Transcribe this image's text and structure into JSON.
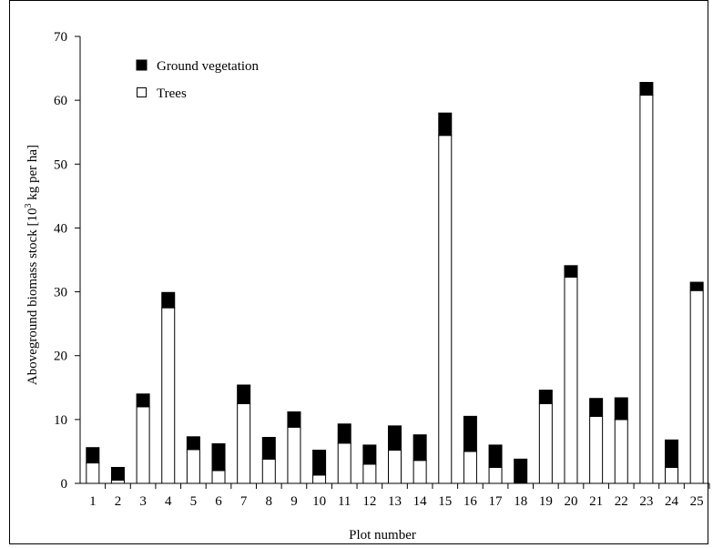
{
  "chart_data": {
    "type": "bar",
    "stacked": true,
    "categories": [
      "1",
      "2",
      "3",
      "4",
      "5",
      "6",
      "7",
      "8",
      "9",
      "10",
      "11",
      "12",
      "13",
      "14",
      "15",
      "16",
      "17",
      "18",
      "19",
      "20",
      "21",
      "22",
      "23",
      "24",
      "25"
    ],
    "series": [
      {
        "name": "Trees",
        "color": "#ffffff",
        "values": [
          3.2,
          0.5,
          12.0,
          27.5,
          5.3,
          2.0,
          12.5,
          3.8,
          8.8,
          1.3,
          6.3,
          3.0,
          5.2,
          3.6,
          54.5,
          5.0,
          2.5,
          0.0,
          12.5,
          32.3,
          10.5,
          10.0,
          60.8,
          2.5,
          30.2
        ]
      },
      {
        "name": "Ground vegetation",
        "color": "#000000",
        "values": [
          2.4,
          2.0,
          2.0,
          2.4,
          2.0,
          4.2,
          2.9,
          3.4,
          2.4,
          3.9,
          3.0,
          3.0,
          3.8,
          4.0,
          3.5,
          5.5,
          3.5,
          3.8,
          2.1,
          1.8,
          2.8,
          3.4,
          2.0,
          4.3,
          1.3
        ]
      }
    ],
    "ylabel": "Aboveground biomass stock [10",
    "ylabel_sup": "3",
    "ylabel_rest": " kg per ha]",
    "xlabel": "Plot number",
    "ylim": [
      0,
      70
    ],
    "yticks": [
      "0",
      "10",
      "20",
      "30",
      "40",
      "50",
      "60",
      "70"
    ],
    "grid": false,
    "legend_position": "top-left",
    "legend_order": [
      "Ground vegetation",
      "Trees"
    ]
  }
}
